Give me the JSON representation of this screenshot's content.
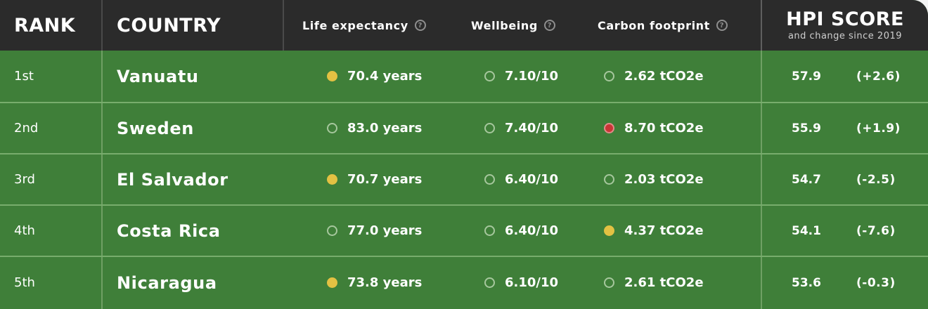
{
  "colors": {
    "header_bg": "#2b2b2b",
    "row_bg": "#3f7f39",
    "indicator_good": "#e3c143",
    "indicator_bad": "#c93535",
    "indicator_neutral": "outline"
  },
  "header": {
    "rank": "RANK",
    "country": "COUNTRY",
    "life_expectancy": "Life expectancy",
    "wellbeing": "Wellbeing",
    "carbon_footprint": "Carbon footprint",
    "info_icon": "?",
    "hpi_title": "HPI SCORE",
    "hpi_subtitle": "and change since 2019"
  },
  "rows": [
    {
      "rank": "1st",
      "country": "Vanuatu",
      "life": "70.4 years",
      "life_dot": "yellow",
      "wellbeing": "7.10/10",
      "wellbeing_dot": "empty",
      "carbon": "2.62 tCO2e",
      "carbon_dot": "empty",
      "score": "57.9",
      "change": "(+2.6)"
    },
    {
      "rank": "2nd",
      "country": "Sweden",
      "life": "83.0 years",
      "life_dot": "empty",
      "wellbeing": "7.40/10",
      "wellbeing_dot": "empty",
      "carbon": "8.70 tCO2e",
      "carbon_dot": "red",
      "score": "55.9",
      "change": "(+1.9)"
    },
    {
      "rank": "3rd",
      "country": "El Salvador",
      "life": "70.7 years",
      "life_dot": "yellow",
      "wellbeing": "6.40/10",
      "wellbeing_dot": "empty",
      "carbon": "2.03 tCO2e",
      "carbon_dot": "empty",
      "score": "54.7",
      "change": "(-2.5)"
    },
    {
      "rank": "4th",
      "country": "Costa Rica",
      "life": "77.0 years",
      "life_dot": "empty",
      "wellbeing": "6.40/10",
      "wellbeing_dot": "empty",
      "carbon": "4.37 tCO2e",
      "carbon_dot": "yellow",
      "score": "54.1",
      "change": "(-7.6)"
    },
    {
      "rank": "5th",
      "country": "Nicaragua",
      "life": "73.8 years",
      "life_dot": "yellow",
      "wellbeing": "6.10/10",
      "wellbeing_dot": "empty",
      "carbon": "2.61 tCO2e",
      "carbon_dot": "empty",
      "score": "53.6",
      "change": "(-0.3)"
    }
  ]
}
